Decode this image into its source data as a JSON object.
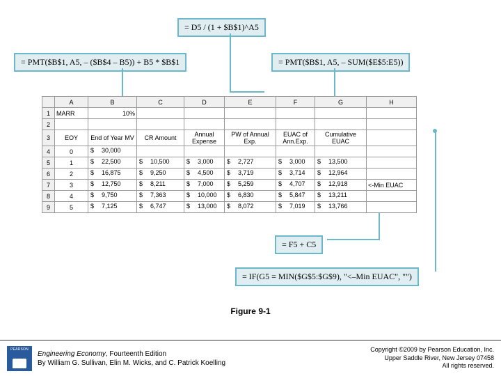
{
  "formulas": {
    "top": "= D5 / (1 + $B$1)^A5",
    "left": "= PMT($B$1, A5, – ($B$4 – B5)) + B5 * $B$1",
    "right": "= PMT($B$1, A5, – SUM($E$5:E5))",
    "bottom1": "= F5 + C5",
    "bottom2": "= IF(G5 = MIN($G$5:$G$9), \"<–Min EUAC\", \"\")"
  },
  "spreadsheet": {
    "columns": [
      "",
      "A",
      "B",
      "C",
      "D",
      "E",
      "F",
      "G",
      "H"
    ],
    "row1": {
      "A": "MARR",
      "B": "10%"
    },
    "headers": {
      "A": "EOY",
      "B": "End of Year MV",
      "C": "CR Amount",
      "D": "Annual Expense",
      "E": "PW of Annual Exp.",
      "F": "EUAC of Ann.Exp.",
      "G": "Cumulative EUAC",
      "H": ""
    },
    "rows": [
      {
        "A": "0",
        "B": "30,000",
        "C": "",
        "D": "",
        "E": "",
        "F": "",
        "G": "",
        "H": ""
      },
      {
        "A": "1",
        "B": "22,500",
        "C": "10,500",
        "D": "3,000",
        "E": "2,727",
        "F": "3,000",
        "G": "13,500",
        "H": ""
      },
      {
        "A": "2",
        "B": "16,875",
        "C": "9,250",
        "D": "4,500",
        "E": "3,719",
        "F": "3,714",
        "G": "12,964",
        "H": ""
      },
      {
        "A": "3",
        "B": "12,750",
        "C": "8,211",
        "D": "7,000",
        "E": "5,259",
        "F": "4,707",
        "G": "12,918",
        "H": "<-Min EUAC"
      },
      {
        "A": "4",
        "B": "9,750",
        "C": "7,363",
        "D": "10,000",
        "E": "6,830",
        "F": "5,847",
        "G": "13,211",
        "H": ""
      },
      {
        "A": "5",
        "B": "7,125",
        "C": "6,747",
        "D": "13,000",
        "E": "8,072",
        "F": "7,019",
        "G": "13,766",
        "H": ""
      }
    ],
    "currency": "$"
  },
  "caption": "Figure 9-1",
  "footer": {
    "title": "Engineering Economy",
    "edition": ", Fourteenth Edition",
    "authors": "By William G. Sullivan, Elin M. Wicks, and C. Patrick Koelling",
    "copyright1": "Copyright ©2009 by Pearson Education, Inc.",
    "copyright2": "Upper Saddle River, New Jersey 07458",
    "copyright3": "All rights reserved."
  },
  "style": {
    "formula_border": "#6ab8c8",
    "formula_bg": "#e0eef2",
    "logo_bg": "#2a5a9e"
  }
}
